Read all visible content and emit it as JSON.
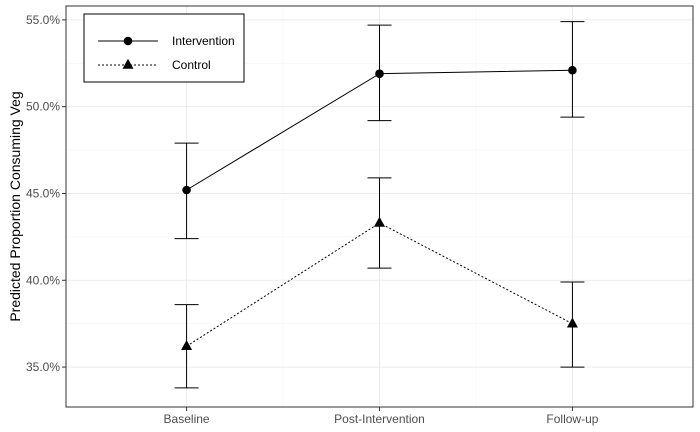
{
  "chart_data": {
    "type": "line",
    "categories": [
      "Baseline",
      "Post-Intervention",
      "Follow-up"
    ],
    "ylabel": "Predicted Proportion Consuming Veg",
    "xlabel": "",
    "ylim": [
      0.327,
      0.558
    ],
    "yticks": [
      0.35,
      0.4,
      0.45,
      0.5,
      0.55
    ],
    "ytick_labels": [
      "35.0%",
      "40.0%",
      "45.0%",
      "50.0%",
      "55.0%"
    ],
    "grid": true,
    "legend_position": "top-left",
    "series": [
      {
        "name": "Intervention",
        "marker": "circle",
        "line_style": "solid",
        "values": [
          0.452,
          0.519,
          0.521
        ],
        "lower": [
          0.424,
          0.492,
          0.494
        ],
        "upper": [
          0.479,
          0.547,
          0.549
        ]
      },
      {
        "name": "Control",
        "marker": "triangle",
        "line_style": "dotted",
        "values": [
          0.362,
          0.433,
          0.375
        ],
        "lower": [
          0.338,
          0.407,
          0.35
        ],
        "upper": [
          0.386,
          0.459,
          0.399
        ]
      }
    ]
  }
}
